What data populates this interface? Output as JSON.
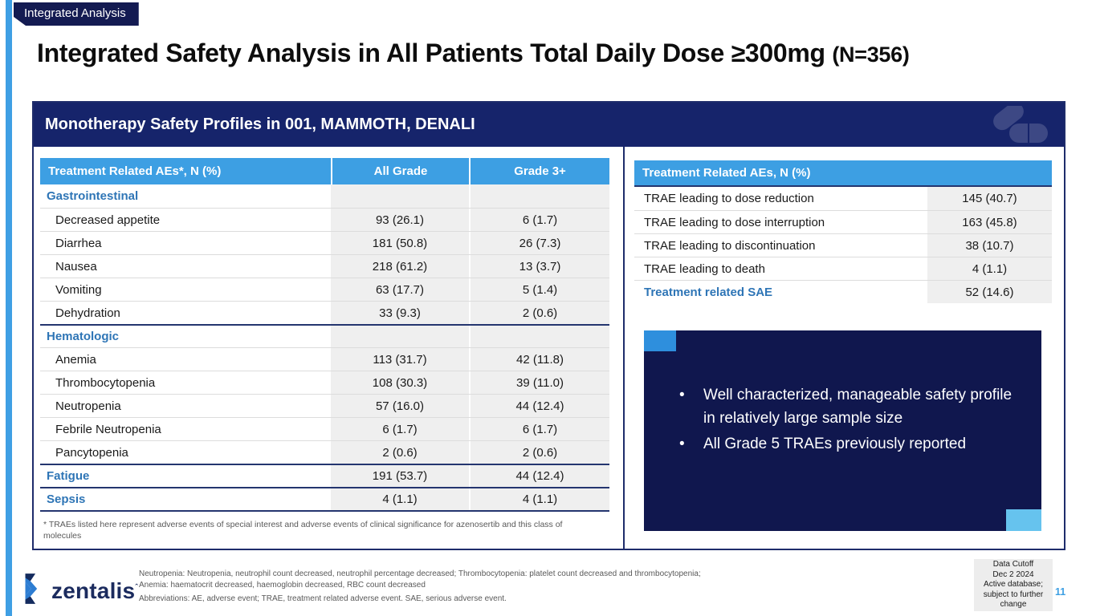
{
  "colors": {
    "accent_blue": "#3D9FE3",
    "navy": "#141B52",
    "panel_navy": "#16246B",
    "category_blue": "#2E75B6",
    "callout_navy": "#10174E",
    "square_blue": "#2E8FDD",
    "square_light_blue": "#66C3EE",
    "value_column_gray": "#EFEFEF",
    "page_number_blue": "#3D9FE3"
  },
  "tag": {
    "label": "Integrated Analysis"
  },
  "title": {
    "main": "Integrated Safety Analysis in All Patients Total Daily Dose ≥300mg ",
    "suffix": "(N=356)"
  },
  "panel": {
    "header": "Monotherapy Safety Profiles in 001, MAMMOTH, DENALI"
  },
  "left_table": {
    "columns": [
      "Treatment Related AEs*, N (%)",
      "All Grade",
      "Grade 3+"
    ],
    "rows": [
      {
        "label": "Gastrointestinal",
        "all_grade": "",
        "grade_3plus": "",
        "category": true
      },
      {
        "label": "Decreased appetite",
        "all_grade": "93 (26.1)",
        "grade_3plus": "6 (1.7)"
      },
      {
        "label": "Diarrhea",
        "all_grade": "181 (50.8)",
        "grade_3plus": "26 (7.3)"
      },
      {
        "label": "Nausea",
        "all_grade": "218 (61.2)",
        "grade_3plus": "13 (3.7)"
      },
      {
        "label": "Vomiting",
        "all_grade": "63 (17.7)",
        "grade_3plus": "5 (1.4)"
      },
      {
        "label": "Dehydration",
        "all_grade": "33 (9.3)",
        "grade_3plus": "2 (0.6)"
      },
      {
        "label": "Hematologic",
        "all_grade": "",
        "grade_3plus": "",
        "category": true
      },
      {
        "label": "Anemia",
        "all_grade": "113 (31.7)",
        "grade_3plus": "42 (11.8)"
      },
      {
        "label": "Thrombocytopenia",
        "all_grade": "108 (30.3)",
        "grade_3plus": "39 (11.0)"
      },
      {
        "label": "Neutropenia",
        "all_grade": "57 (16.0)",
        "grade_3plus": "44 (12.4)"
      },
      {
        "label": "Febrile Neutropenia",
        "all_grade": "6 (1.7)",
        "grade_3plus": "6 (1.7)"
      },
      {
        "label": "Pancytopenia",
        "all_grade": "2 (0.6)",
        "grade_3plus": "2 (0.6)"
      },
      {
        "label": "Fatigue",
        "all_grade": "191 (53.7)",
        "grade_3plus": "44 (12.4)",
        "category": true
      },
      {
        "label": "Sepsis",
        "all_grade": "4 (1.1)",
        "grade_3plus": "4 (1.1)",
        "category": true
      }
    ],
    "footnote": "* TRAEs listed here represent adverse events of special interest and adverse events of clinical significance for azenosertib and this class of molecules"
  },
  "right_table": {
    "header": "Treatment Related AEs, N (%)",
    "rows": [
      {
        "label": "TRAE leading to dose reduction",
        "value": "145 (40.7)"
      },
      {
        "label": "TRAE leading to dose interruption",
        "value": "163 (45.8)"
      },
      {
        "label": "TRAE leading to discontinuation",
        "value": "38 (10.7)"
      },
      {
        "label": "TRAE leading to death",
        "value": "4 (1.1)"
      },
      {
        "label": "Treatment related SAE",
        "value": "52 (14.6)",
        "category": true
      }
    ]
  },
  "callout": {
    "bullets": [
      "Well characterized, manageable safety profile in relatively large sample size",
      "All Grade 5 TRAEs previously reported"
    ]
  },
  "footer": {
    "logo_text": "zentalis",
    "notes": [
      "Neutropenia: Neutropenia, neutrophil count decreased, neutrophil percentage decreased; Thrombocytopenia: platelet count decreased and thrombocytopenia;",
      "Anemia: haematocrit decreased, haemoglobin decreased, RBC count decreased",
      "Abbreviations: AE, adverse event; TRAE, treatment related adverse event. SAE, serious adverse event."
    ],
    "data_cutoff_lines": [
      "Data Cutoff",
      "Dec 2 2024",
      "Active database;",
      "subject to further change"
    ],
    "page_number": "11"
  }
}
